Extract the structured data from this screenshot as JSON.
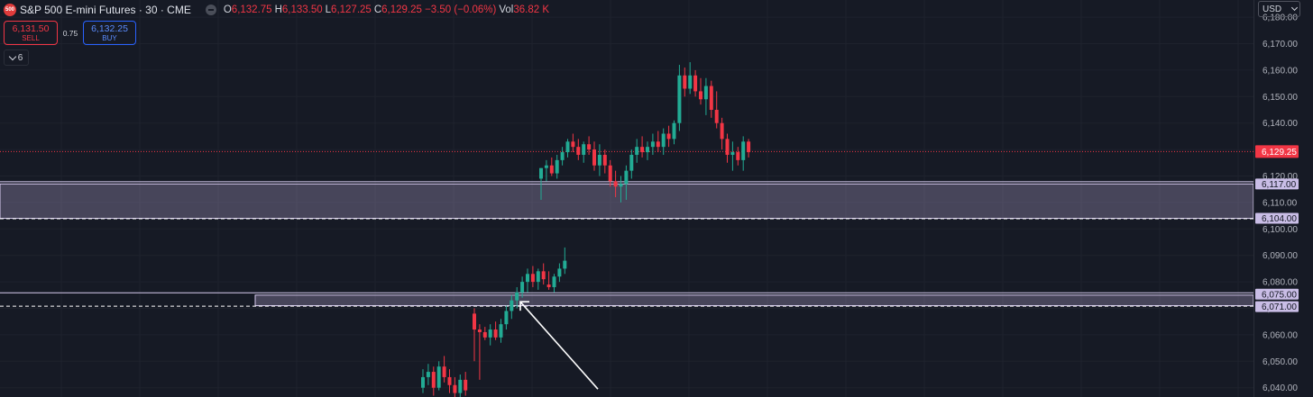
{
  "header": {
    "symbol_badge": "500",
    "symbol_title": "S&P 500 E-mini Futures · 30 · CME",
    "ohlc": [
      {
        "key": "O",
        "value": "6,132.75"
      },
      {
        "key": "H",
        "value": "6,133.50"
      },
      {
        "key": "L",
        "value": "6,127.25"
      },
      {
        "key": "C",
        "value": "6,129.25 −3.50 (−0.06%)"
      }
    ],
    "volume_key": "Vol",
    "volume_value": "36.82 K"
  },
  "trade": {
    "sell_price": "6,131.50",
    "sell_label": "SELL",
    "spread": "0.75",
    "buy_price": "6,132.25",
    "buy_label": "BUY"
  },
  "indicator_count": "6",
  "currency": "USD",
  "colors": {
    "background": "#161a25",
    "up": "#22ab94",
    "down": "#f23645",
    "zone": "#b8a8d6",
    "last_price": "#f23645"
  },
  "chart_data": {
    "type": "candlestick",
    "ylim": [
      6036.5,
      6186.5
    ],
    "yticks": [
      "6,040.00",
      "6,050.00",
      "6,060.00",
      "6,070.00",
      "6,080.00",
      "6,090.00",
      "6,100.00",
      "6,110.00",
      "6,120.00",
      "6,130.00",
      "6,140.00",
      "6,150.00",
      "6,160.00",
      "6,170.00",
      "6,180.00"
    ],
    "last_price": 6129.25,
    "last_price_label": "6,129.25",
    "zones": [
      {
        "top": 6117,
        "bottom": 6104,
        "top_label": "6,117.00",
        "bottom_label": "6,104.00",
        "extends_full": true
      },
      {
        "top": 6075,
        "bottom": 6071,
        "top_label": "6,075.00",
        "bottom_label": "6,071.00",
        "extends_full": false
      }
    ],
    "candles": [
      [
        6040,
        6047,
        6038,
        6044
      ],
      [
        6044,
        6049,
        6041,
        6046
      ],
      [
        6046,
        6048,
        6037,
        6040
      ],
      [
        6040,
        6050,
        6039,
        6048
      ],
      [
        6048,
        6052,
        6042,
        6044
      ],
      [
        6044,
        6047,
        6038,
        6041
      ],
      [
        6041,
        6044,
        6035,
        6038
      ],
      [
        6038,
        6045,
        6036,
        6043
      ],
      [
        6043,
        6046,
        6037,
        6039
      ],
      [
        6068,
        6070,
        6050,
        6062
      ],
      [
        6062,
        6064,
        6043,
        6061
      ],
      [
        6061,
        6063,
        6058,
        6059
      ],
      [
        6059,
        6064,
        6056,
        6062
      ],
      [
        6062,
        6065,
        6058,
        6059
      ],
      [
        6059,
        6066,
        6057,
        6064
      ],
      [
        6064,
        6071,
        6062,
        6069
      ],
      [
        6069,
        6075,
        6066,
        6073
      ],
      [
        6073,
        6078,
        6070,
        6076
      ],
      [
        6076,
        6082,
        6074,
        6080
      ],
      [
        6080,
        6085,
        6076,
        6083
      ],
      [
        6083,
        6086,
        6078,
        6080
      ],
      [
        6080,
        6085,
        6077,
        6084
      ],
      [
        6084,
        6087,
        6079,
        6081
      ],
      [
        6079,
        6084,
        6077,
        6078
      ],
      [
        6078,
        6083,
        6076,
        6082
      ],
      [
        6082,
        6087,
        6080,
        6085
      ],
      [
        6085,
        6093,
        6083,
        6088
      ],
      [
        6119,
        6123,
        6111,
        6123
      ],
      [
        6123,
        6126,
        6118,
        6124
      ],
      [
        6124,
        6127,
        6120,
        6121
      ],
      [
        6121,
        6128,
        6119,
        6126
      ],
      [
        6126,
        6131,
        6124,
        6129
      ],
      [
        6129,
        6134,
        6127,
        6133
      ],
      [
        6133,
        6136,
        6129,
        6131
      ],
      [
        6131,
        6134,
        6126,
        6128
      ],
      [
        6128,
        6133,
        6125,
        6132
      ],
      [
        6132,
        6135,
        6128,
        6130
      ],
      [
        6130,
        6133,
        6122,
        6124
      ],
      [
        6124,
        6132,
        6120,
        6128
      ],
      [
        6128,
        6130,
        6121,
        6124
      ],
      [
        6124,
        6126,
        6116,
        6118
      ],
      [
        6118,
        6122,
        6112,
        6116
      ],
      [
        6116,
        6120,
        6110,
        6117
      ],
      [
        6117,
        6124,
        6111,
        6122
      ],
      [
        6122,
        6130,
        6119,
        6128
      ],
      [
        6128,
        6134,
        6125,
        6131
      ],
      [
        6131,
        6135,
        6127,
        6129
      ],
      [
        6129,
        6133,
        6126,
        6131
      ],
      [
        6131,
        6136,
        6128,
        6133
      ],
      [
        6133,
        6137,
        6129,
        6131
      ],
      [
        6131,
        6138,
        6128,
        6136
      ],
      [
        6136,
        6139,
        6131,
        6134
      ],
      [
        6134,
        6141,
        6132,
        6140
      ],
      [
        6140,
        6162,
        6137,
        6158
      ],
      [
        6158,
        6161,
        6150,
        6153
      ],
      [
        6153,
        6163,
        6151,
        6158
      ],
      [
        6158,
        6160,
        6150,
        6152
      ],
      [
        6152,
        6157,
        6147,
        6149
      ],
      [
        6149,
        6157,
        6143,
        6154
      ],
      [
        6154,
        6156,
        6142,
        6145
      ],
      [
        6145,
        6152,
        6138,
        6140
      ],
      [
        6140,
        6142,
        6130,
        6134
      ],
      [
        6134,
        6136,
        6125,
        6128
      ],
      [
        6128,
        6133,
        6122,
        6129
      ],
      [
        6129,
        6131,
        6124,
        6126
      ],
      [
        6126,
        6135,
        6122,
        6133
      ],
      [
        6133,
        6134,
        6127,
        6129
      ]
    ],
    "arrow": {
      "from": [
        310,
        6039.5
      ],
      "to": [
        278,
        6072.5
      ]
    }
  }
}
